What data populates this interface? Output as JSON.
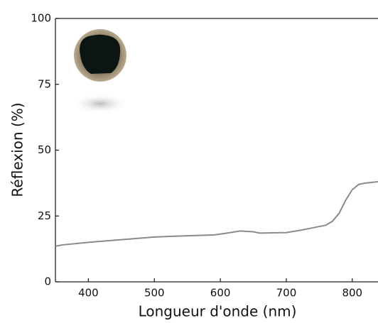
{
  "chart_data": {
    "type": "line",
    "x_label": "Longueur d'onde (nm)",
    "y_label": "Réflexion (%)",
    "series": [
      {
        "color": "#8a8a8a",
        "x": [
          350,
          360,
          400,
          450,
          500,
          550,
          590,
          610,
          630,
          650,
          660,
          700,
          720,
          740,
          760,
          770,
          780,
          790,
          800,
          810,
          820,
          839
        ],
        "values": [
          13.5,
          14,
          15,
          16,
          17,
          17.5,
          17.8,
          18.5,
          19.3,
          19,
          18.5,
          18.7,
          19.5,
          20.5,
          21.5,
          23,
          26,
          31,
          35,
          37,
          37.5,
          38
        ]
      }
    ],
    "xlim": [
      350,
      839
    ],
    "xticks": [
      400,
      500,
      600,
      700,
      800
    ],
    "ylim": [
      0,
      100
    ],
    "yticks": [
      0,
      25,
      50,
      75,
      100
    ],
    "grid": false
  }
}
